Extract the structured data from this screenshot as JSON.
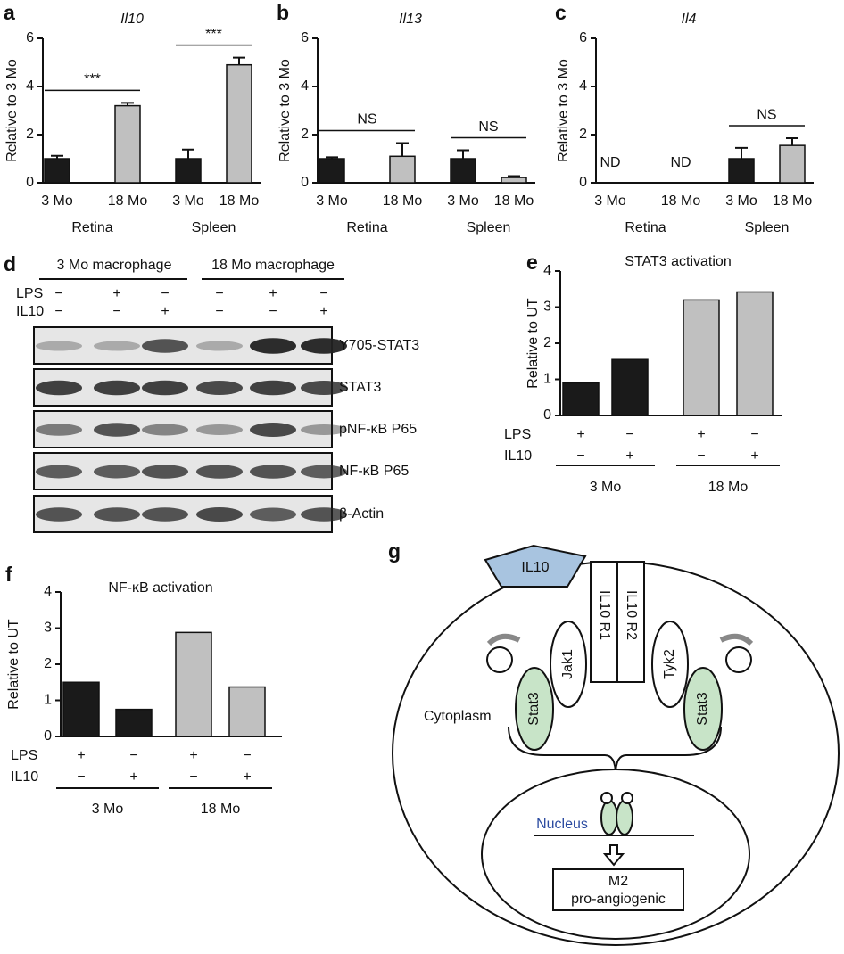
{
  "chart_data": [
    {
      "type": "bar",
      "panel": "a",
      "title": "Il10",
      "y_label": "Relative to 3 Mo",
      "categories": [
        "3 Mo",
        "18 Mo",
        "3 Mo",
        "18 Mo"
      ],
      "values": [
        1.0,
        3.2,
        1.0,
        4.9
      ],
      "errors": [
        0.12,
        0.12,
        0.38,
        0.3
      ],
      "colors": [
        "#1a1a1a",
        "#c0c0c0",
        "#1a1a1a",
        "#c0c0c0"
      ],
      "groups": [
        {
          "name": "Retina",
          "comparison": "***"
        },
        {
          "name": "Spleen",
          "comparison": "***"
        }
      ],
      "ylim": [
        0,
        6
      ],
      "yticks": [
        0,
        2,
        4,
        6
      ]
    },
    {
      "type": "bar",
      "panel": "b",
      "title": "Il13",
      "y_label": "Relative to 3  Mo",
      "categories": [
        "3 Mo",
        "18 Mo",
        "3 Mo",
        "18 Mo"
      ],
      "values": [
        1.0,
        1.1,
        1.0,
        0.22
      ],
      "errors": [
        0.06,
        0.55,
        0.35,
        0.06
      ],
      "colors": [
        "#1a1a1a",
        "#c0c0c0",
        "#1a1a1a",
        "#c0c0c0"
      ],
      "groups": [
        {
          "name": "Retina",
          "comparison": "NS"
        },
        {
          "name": "Spleen",
          "comparison": "NS"
        }
      ],
      "ylim": [
        0,
        6
      ],
      "yticks": [
        0,
        2,
        4,
        6
      ]
    },
    {
      "type": "bar",
      "panel": "c",
      "title": "Il4",
      "y_label": "Relative to 3  Mo",
      "categories": [
        "3 Mo",
        "18 Mo",
        "3 Mo",
        "18 Mo"
      ],
      "values": [
        null,
        null,
        1.0,
        1.55
      ],
      "value_labels": [
        "ND",
        "ND",
        null,
        null
      ],
      "errors": [
        null,
        null,
        0.45,
        0.3
      ],
      "colors": [
        "#1a1a1a",
        "#c0c0c0",
        "#1a1a1a",
        "#c0c0c0"
      ],
      "groups": [
        {
          "name": "Retina"
        },
        {
          "name": "Spleen",
          "comparison": "NS"
        }
      ],
      "ylim": [
        0,
        6
      ],
      "yticks": [
        0,
        2,
        4,
        6
      ]
    },
    {
      "type": "bar",
      "panel": "e",
      "title": "STAT3 activation",
      "y_label": "Relative to UT",
      "values": [
        0.9,
        1.55,
        3.2,
        3.42
      ],
      "colors": [
        "#1a1a1a",
        "#1a1a1a",
        "#c0c0c0",
        "#c0c0c0"
      ],
      "rows": [
        {
          "name": "LPS",
          "labels": [
            "+",
            "−",
            "+",
            "−"
          ]
        },
        {
          "name": "IL10",
          "labels": [
            "−",
            "+",
            "−",
            "+"
          ]
        }
      ],
      "groups": [
        {
          "name": "3 Mo"
        },
        {
          "name": "18 Mo"
        }
      ],
      "ylim": [
        0,
        4
      ],
      "yticks": [
        0,
        1,
        2,
        3,
        4
      ]
    },
    {
      "type": "bar",
      "panel": "f",
      "title": "NF-κB activation",
      "y_label": "Relative to UT",
      "values": [
        1.5,
        0.75,
        2.88,
        1.37
      ],
      "colors": [
        "#1a1a1a",
        "#1a1a1a",
        "#c0c0c0",
        "#c0c0c0"
      ],
      "rows": [
        {
          "name": "LPS",
          "labels": [
            "+",
            "−",
            "+",
            "−"
          ]
        },
        {
          "name": "IL10",
          "labels": [
            "−",
            "+",
            "−",
            "+"
          ]
        }
      ],
      "groups": [
        {
          "name": "3 Mo"
        },
        {
          "name": "18 Mo"
        }
      ],
      "ylim": [
        0,
        4
      ],
      "yticks": [
        0,
        1,
        2,
        3,
        4
      ]
    }
  ],
  "blot": {
    "panel": "d",
    "groups": [
      "3 Mo macrophage",
      "18 Mo macrophage"
    ],
    "rows": [
      {
        "name": "LPS",
        "labels": [
          "−",
          "+",
          "−",
          "−",
          "+",
          "−"
        ]
      },
      {
        "name": "IL10",
        "labels": [
          "−",
          "−",
          "+",
          "−",
          "−",
          "+"
        ]
      }
    ],
    "bands": [
      "Y705-STAT3",
      "STAT3",
      "pNF-κB P65",
      "NF-κB P65",
      "β-Actin"
    ]
  },
  "diagram": {
    "panel": "g",
    "ligand": "IL10",
    "receptors": [
      "IL10 R1",
      "IL10 R2"
    ],
    "kinases": [
      "Jak1",
      "Tyk2"
    ],
    "stats": [
      "Stat3",
      "Stat3"
    ],
    "cytoplasm": "Cytoplasm",
    "nucleus": "Nucleus",
    "outcome": [
      "M2",
      "pro-angiogenic"
    ]
  }
}
